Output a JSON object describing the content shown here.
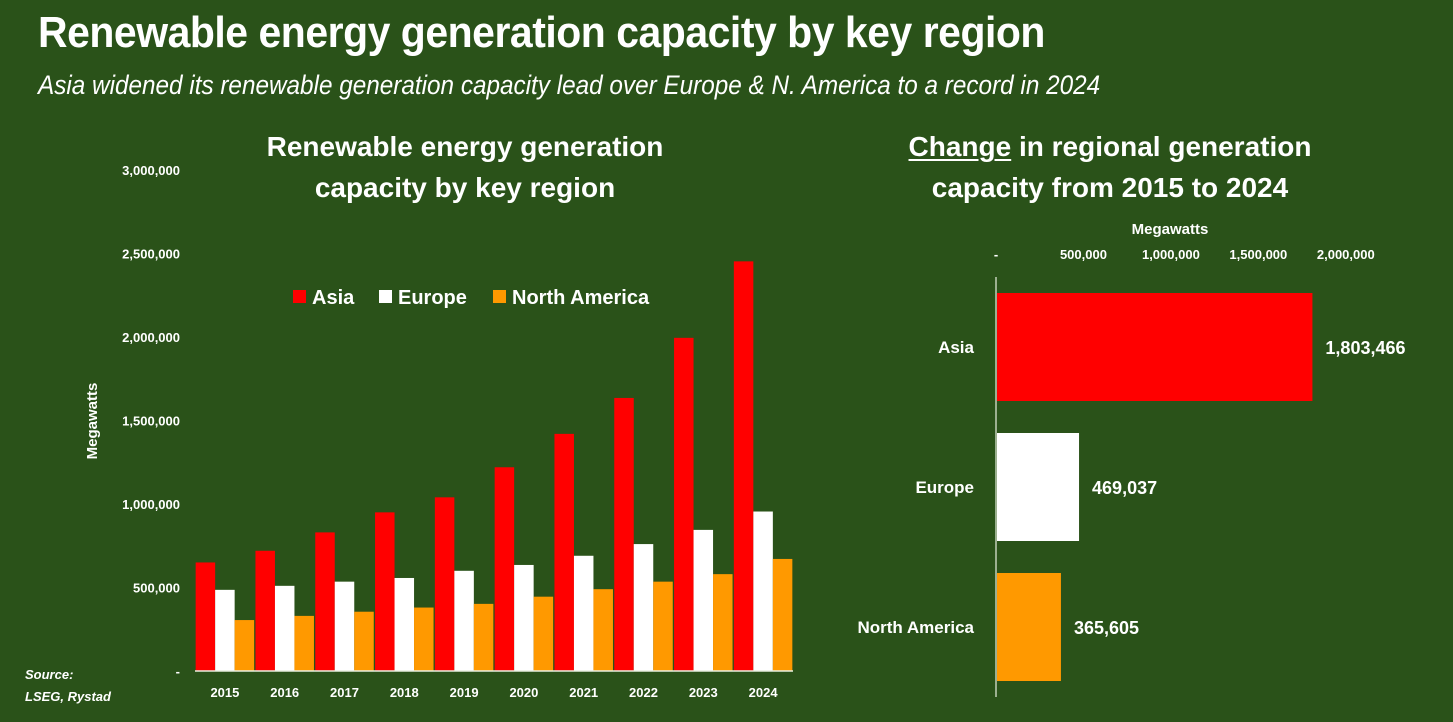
{
  "header": {
    "title": "Renewable energy generation capacity by key region",
    "subtitle": "Asia widened its renewable generation capacity lead over Europe & N. America to a record in 2024"
  },
  "source": {
    "line1": "Source:",
    "line2": "LSEG, Rystad"
  },
  "colors": {
    "background": "#2a5219",
    "Asia": "#ff0000",
    "Europe": "#ffffff",
    "North America": "#ff9900",
    "text": "#ffffff"
  },
  "chart_data": [
    {
      "type": "bar",
      "title_line1": "Renewable energy generation",
      "title_line2": "capacity by key region",
      "xlabel": "",
      "ylabel": "Megawatts",
      "ylim": [
        0,
        3000000
      ],
      "yticks": [
        0,
        500000,
        1000000,
        1500000,
        2000000,
        2500000,
        3000000
      ],
      "ytick_labels": [
        "-",
        "500,000",
        "1,000,000",
        "1,500,000",
        "2,000,000",
        "2,500,000",
        "3,000,000"
      ],
      "grid": false,
      "legend_position": "top-center",
      "categories": [
        "2015",
        "2016",
        "2017",
        "2018",
        "2019",
        "2020",
        "2021",
        "2022",
        "2023",
        "2024"
      ],
      "series": [
        {
          "name": "Asia",
          "values": [
            650000,
            720000,
            830000,
            950000,
            1040000,
            1220000,
            1420000,
            1635000,
            1995000,
            2453000
          ]
        },
        {
          "name": "Europe",
          "values": [
            486000,
            510000,
            535000,
            557000,
            600000,
            635000,
            690000,
            760000,
            845000,
            955000
          ]
        },
        {
          "name": "North America",
          "values": [
            305000,
            330000,
            355000,
            380000,
            402000,
            445000,
            490000,
            535000,
            580000,
            671000
          ]
        }
      ]
    },
    {
      "type": "bar",
      "orientation": "horizontal",
      "title_underlined": "Change",
      "title_line1_rest": " in regional generation",
      "title_line2": "capacity from 2015 to 2024",
      "xlabel": "Megawatts",
      "ylabel": "",
      "xlim": [
        0,
        2000000
      ],
      "xticks": [
        0,
        500000,
        1000000,
        1500000,
        2000000
      ],
      "xtick_labels": [
        "-",
        "500,000",
        "1,000,000",
        "1,500,000",
        "2,000,000"
      ],
      "xaxis_position": "top",
      "grid": false,
      "categories": [
        "Asia",
        "Europe",
        "North America"
      ],
      "values": [
        1803466,
        469037,
        365605
      ],
      "value_labels": [
        "1,803,466",
        "469,037",
        "365,605"
      ]
    }
  ]
}
